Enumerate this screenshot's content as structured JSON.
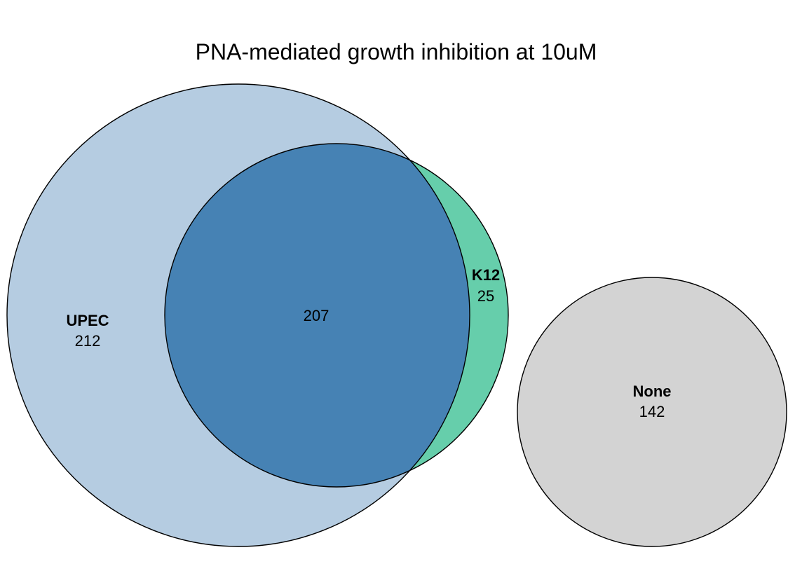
{
  "title": "PNA-mediated growth inhibition at 10uM",
  "sets": [
    {
      "id": "upec",
      "label": "UPEC",
      "only_count": "212",
      "color": "#b5cce1"
    },
    {
      "id": "k12",
      "label": "K12",
      "only_count": "25",
      "color": "#66ceab"
    },
    {
      "id": "none",
      "label": "None",
      "only_count": "142",
      "color": "#d3d3d3"
    }
  ],
  "intersections": [
    {
      "sets": [
        "UPEC",
        "K12"
      ],
      "count": "207",
      "color": "#4682b4"
    }
  ],
  "outline_color": "#000000"
}
